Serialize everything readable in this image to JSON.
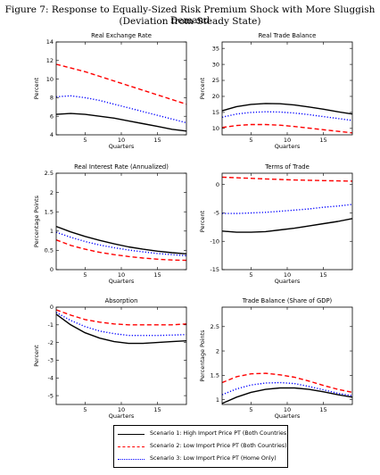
{
  "figure": {
    "title": "Figure 7: Response to Equally-Sized Risk Premium Shock with More Sluggish Demand",
    "subtitle": "(Deviation from Steady State)"
  },
  "legend": [
    {
      "label": "Scenario 1: High Import Price PT (Both Countries)",
      "color": "#000000",
      "dash": "solid"
    },
    {
      "label": "Scenario 2: Low Import Price PT (Both Countries)",
      "color": "#ff0000",
      "dash": "dashed"
    },
    {
      "label": "Scenario 3: Low Import Price PT (Home Only)",
      "color": "#0000ff",
      "dash": "dotted"
    }
  ],
  "chart_data": [
    {
      "type": "line",
      "title": "Real Exchange Rate",
      "xlabel": "Quarters",
      "ylabel": "Percent",
      "xlim": [
        1,
        19
      ],
      "ylim": [
        4,
        14
      ],
      "xticks": [
        5,
        10,
        15
      ],
      "yticks": [
        4,
        6,
        8,
        10,
        12,
        14
      ],
      "x": [
        1,
        3,
        5,
        7,
        9,
        11,
        13,
        15,
        17,
        19
      ],
      "series": [
        {
          "values": [
            6.2,
            6.3,
            6.2,
            6.0,
            5.8,
            5.5,
            5.2,
            4.9,
            4.6,
            4.4
          ]
        },
        {
          "values": [
            11.6,
            11.2,
            10.8,
            10.3,
            9.8,
            9.3,
            8.8,
            8.3,
            7.8,
            7.3
          ]
        },
        {
          "values": [
            8.1,
            8.2,
            8.0,
            7.7,
            7.3,
            6.9,
            6.5,
            6.1,
            5.7,
            5.3
          ]
        }
      ]
    },
    {
      "type": "line",
      "title": "Real Trade Balance",
      "xlabel": "Quarters",
      "ylabel": "Percent",
      "xlim": [
        1,
        19
      ],
      "ylim": [
        8,
        37
      ],
      "xticks": [
        5,
        10,
        15
      ],
      "yticks": [
        10,
        15,
        20,
        25,
        30,
        35
      ],
      "x": [
        1,
        3,
        5,
        7,
        9,
        11,
        13,
        15,
        17,
        19
      ],
      "series": [
        {
          "values": [
            15.5,
            16.8,
            17.5,
            17.8,
            17.7,
            17.3,
            16.7,
            16.0,
            15.2,
            14.5
          ]
        },
        {
          "values": [
            10.3,
            10.9,
            11.2,
            11.2,
            11.0,
            10.6,
            10.1,
            9.6,
            9.1,
            8.6
          ]
        },
        {
          "values": [
            13.5,
            14.5,
            15.0,
            15.2,
            15.1,
            14.8,
            14.3,
            13.7,
            13.1,
            12.5
          ]
        }
      ]
    },
    {
      "type": "line",
      "title": "Real Interest Rate (Annualized)",
      "xlabel": "Quarters",
      "ylabel": "Percentage Points",
      "xlim": [
        1,
        19
      ],
      "ylim": [
        0,
        2.5
      ],
      "xticks": [
        5,
        10,
        15
      ],
      "yticks": [
        0,
        0.5,
        1,
        1.5,
        2,
        2.5
      ],
      "x": [
        1,
        3,
        5,
        7,
        9,
        11,
        13,
        15,
        17,
        19
      ],
      "series": [
        {
          "values": [
            1.12,
            0.98,
            0.86,
            0.76,
            0.67,
            0.59,
            0.53,
            0.48,
            0.44,
            0.41
          ]
        },
        {
          "values": [
            0.77,
            0.63,
            0.53,
            0.45,
            0.39,
            0.34,
            0.3,
            0.27,
            0.25,
            0.24
          ]
        },
        {
          "values": [
            0.97,
            0.84,
            0.73,
            0.64,
            0.57,
            0.51,
            0.46,
            0.42,
            0.39,
            0.36
          ]
        }
      ]
    },
    {
      "type": "line",
      "title": "Terms of Trade",
      "xlabel": "Quarters",
      "ylabel": "Percent",
      "xlim": [
        1,
        19
      ],
      "ylim": [
        -15,
        2
      ],
      "xticks": [
        5,
        10,
        15
      ],
      "yticks": [
        -15,
        -10,
        -5,
        0
      ],
      "x": [
        1,
        3,
        5,
        7,
        9,
        11,
        13,
        15,
        17,
        19
      ],
      "series": [
        {
          "values": [
            -8.2,
            -8.4,
            -8.4,
            -8.3,
            -8.0,
            -7.7,
            -7.3,
            -6.9,
            -6.5,
            -6.0
          ]
        },
        {
          "values": [
            1.3,
            1.2,
            1.1,
            1.0,
            0.9,
            0.8,
            0.75,
            0.7,
            0.65,
            0.6
          ]
        },
        {
          "values": [
            -5.1,
            -5.1,
            -5.0,
            -4.9,
            -4.7,
            -4.5,
            -4.3,
            -4.0,
            -3.8,
            -3.5
          ]
        }
      ]
    },
    {
      "type": "line",
      "title": "Absorption",
      "xlabel": "Quarters",
      "ylabel": "Percent",
      "xlim": [
        1,
        19
      ],
      "ylim": [
        -5.5,
        0
      ],
      "xticks": [
        5,
        10,
        15
      ],
      "yticks": [
        -5,
        -4,
        -3,
        -2,
        -1,
        0
      ],
      "x": [
        1,
        3,
        5,
        7,
        9,
        11,
        13,
        15,
        17,
        19
      ],
      "series": [
        {
          "values": [
            -0.4,
            -1.0,
            -1.45,
            -1.75,
            -1.95,
            -2.05,
            -2.05,
            -2.0,
            -1.95,
            -1.9
          ]
        },
        {
          "values": [
            -0.15,
            -0.45,
            -0.7,
            -0.85,
            -0.95,
            -1.0,
            -1.0,
            -1.0,
            -1.0,
            -0.95
          ]
        },
        {
          "values": [
            -0.3,
            -0.75,
            -1.1,
            -1.35,
            -1.5,
            -1.6,
            -1.6,
            -1.6,
            -1.58,
            -1.55
          ]
        }
      ]
    },
    {
      "type": "line",
      "title": "Trade Balance (Share of GDP)",
      "xlabel": "Quarters",
      "ylabel": "Percentage Points",
      "xlim": [
        1,
        19
      ],
      "ylim": [
        0.9,
        2.9
      ],
      "xticks": [
        5,
        10,
        15
      ],
      "yticks": [
        1,
        1.5,
        2,
        2.5
      ],
      "x": [
        1,
        3,
        5,
        7,
        9,
        11,
        13,
        15,
        17,
        19
      ],
      "series": [
        {
          "values": [
            0.92,
            1.05,
            1.15,
            1.21,
            1.24,
            1.24,
            1.21,
            1.16,
            1.1,
            1.05
          ]
        },
        {
          "values": [
            1.35,
            1.47,
            1.53,
            1.54,
            1.51,
            1.46,
            1.38,
            1.29,
            1.21,
            1.15
          ]
        },
        {
          "values": [
            1.1,
            1.22,
            1.3,
            1.34,
            1.35,
            1.33,
            1.27,
            1.2,
            1.13,
            1.08
          ]
        }
      ]
    }
  ]
}
